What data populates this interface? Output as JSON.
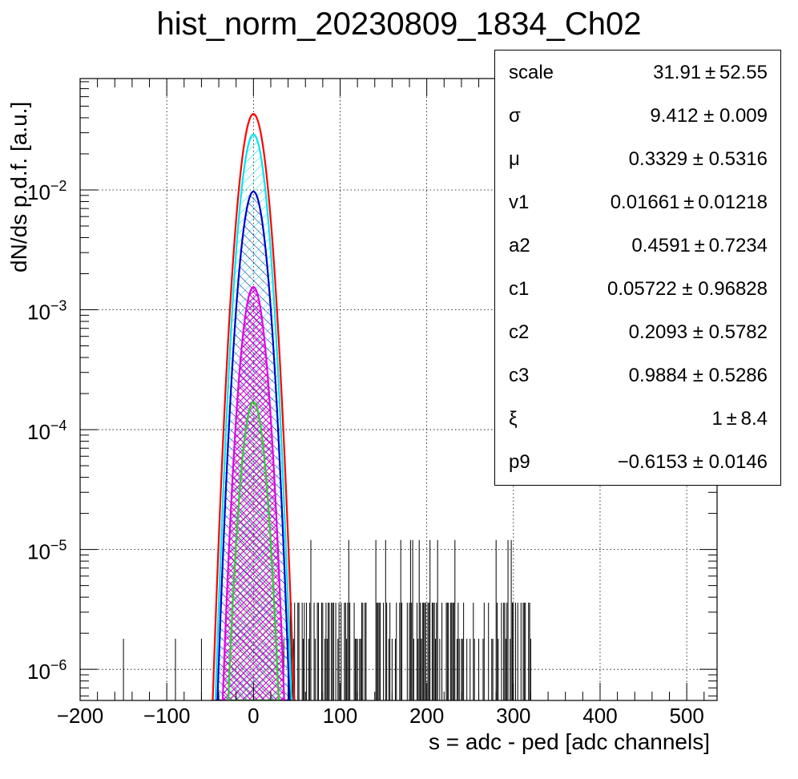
{
  "chart_data": {
    "type": "histogram",
    "title": "hist_norm_20230809_1834_Ch02",
    "xlabel": "s = adc - ped [adc channels]",
    "ylabel": "dN/ds p.d.f. [a.u.]",
    "xlim": [
      -200,
      535
    ],
    "ylim": [
      5.5e-07,
      0.085
    ],
    "yscale": "log",
    "grid": true,
    "xticks": [
      -200,
      -100,
      0,
      100,
      200,
      300,
      400,
      500
    ],
    "xtick_labels": [
      "−200",
      "−100",
      "0",
      "100",
      "200",
      "300",
      "400",
      "500"
    ],
    "yticks": [
      {
        "value": 1e-06,
        "label_base": "10",
        "label_exp": "−6"
      },
      {
        "value": 1e-05,
        "label_base": "10",
        "label_exp": "−5"
      },
      {
        "value": 0.0001,
        "label_base": "10",
        "label_exp": "−4"
      },
      {
        "value": 0.001,
        "label_base": "10",
        "label_exp": "−3"
      },
      {
        "value": 0.01,
        "label_base": "10",
        "label_exp": "−2"
      }
    ],
    "series": [
      {
        "color": "#ff0000",
        "peak": 0.043,
        "mean": 0,
        "sigma": 9.9,
        "hatch": "none"
      },
      {
        "color": "#00e5ee",
        "peak": 0.029,
        "mean": 0,
        "sigma": 9.4,
        "hatch": "diag-up"
      },
      {
        "color": "#0000cc",
        "peak": 0.0097,
        "mean": 0,
        "sigma": 9.4,
        "hatch": "diag-down"
      },
      {
        "color": "#e600e6",
        "peak": 0.00155,
        "mean": 0,
        "sigma": 8.9,
        "hatch": "cross"
      },
      {
        "color": "#33cc33",
        "peak": 0.00017,
        "mean": 0,
        "sigma": 8.6,
        "hatch": "diag-up"
      }
    ],
    "noise_region": [
      40,
      320
    ],
    "noise_levels": [
      1.2e-05,
      3.6e-06,
      1.8e-06
    ],
    "noise_low_tail_x": [
      -150,
      -90,
      -60,
      35,
      45
    ]
  },
  "stats": [
    {
      "name": "scale",
      "value": "31.91 ± 52.55"
    },
    {
      "name": "σ",
      "value": "9.412 ± 0.009"
    },
    {
      "name": "μ",
      "value": "0.3329 ± 0.5316"
    },
    {
      "name": "v1",
      "value": "0.01661 ± 0.01218"
    },
    {
      "name": "a2",
      "value": "0.4591 ± 0.7234"
    },
    {
      "name": "c1",
      "value": "0.05722 ± 0.96828"
    },
    {
      "name": "c2",
      "value": "0.2093 ± 0.5782"
    },
    {
      "name": "c3",
      "value": "0.9884 ± 0.5286"
    },
    {
      "name": "ξ",
      "value": "1 ± 8.4"
    },
    {
      "name": "p9",
      "value": "−0.6153 ± 0.0146"
    }
  ]
}
